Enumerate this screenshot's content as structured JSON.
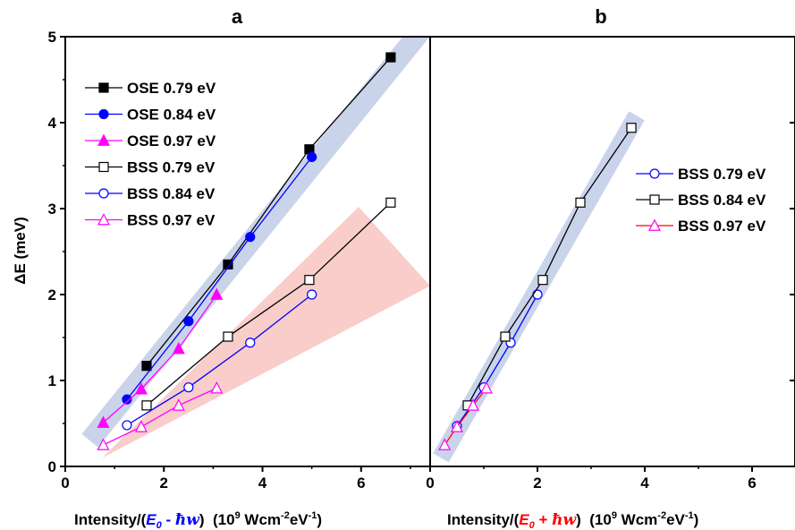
{
  "figure": {
    "ylabel": "ΔE (meV)"
  },
  "chart_data": [
    {
      "panel": "a",
      "type": "line",
      "title": "a",
      "xlabel": {
        "pre": "Intensity/(",
        "e0": "E",
        "e0_sub": "0",
        "op": " - ",
        "hw": "ħw",
        "post": ")  (10",
        "sup1": "9",
        "mid": " Wcm",
        "sup2": "-2",
        "mid2": "eV",
        "sup3": "-1",
        "end": ")"
      },
      "ylabel": "ΔE (meV)",
      "xlim": [
        0,
        7.4
      ],
      "ylim": [
        0,
        5
      ],
      "xticks": [
        0,
        2,
        4,
        6
      ],
      "yticks": [
        0,
        1,
        2,
        3,
        4,
        5
      ],
      "legend_position": "top-left",
      "series": [
        {
          "name": "OSE 0.79 eV",
          "color": "#000000",
          "marker": "square",
          "filled": true,
          "points": [
            [
              1.65,
              1.17
            ],
            [
              3.3,
              2.35
            ],
            [
              4.95,
              3.69
            ],
            [
              6.6,
              4.76
            ]
          ]
        },
        {
          "name": "OSE 0.84 eV",
          "color": "#0000ff",
          "marker": "circle",
          "filled": true,
          "points": [
            [
              1.25,
              0.78
            ],
            [
              2.5,
              1.69
            ],
            [
              3.75,
              2.67
            ],
            [
              5.0,
              3.6
            ]
          ]
        },
        {
          "name": "OSE 0.97 eV",
          "color": "#ff00ff",
          "marker": "triangle",
          "filled": true,
          "points": [
            [
              0.77,
              0.51
            ],
            [
              1.54,
              0.9
            ],
            [
              2.3,
              1.37
            ],
            [
              3.07,
              2.0
            ]
          ]
        },
        {
          "name": "BSS 0.79 eV",
          "color": "#000000",
          "marker": "square",
          "filled": false,
          "points": [
            [
              1.65,
              0.71
            ],
            [
              3.3,
              1.51
            ],
            [
              4.95,
              2.17
            ],
            [
              6.6,
              3.07
            ]
          ]
        },
        {
          "name": "BSS 0.84 eV",
          "color": "#0000ff",
          "marker": "circle",
          "filled": false,
          "points": [
            [
              1.25,
              0.48
            ],
            [
              2.5,
              0.92
            ],
            [
              3.75,
              1.44
            ],
            [
              5.0,
              2.0
            ]
          ]
        },
        {
          "name": "BSS 0.97 eV",
          "color": "#ff00ff",
          "marker": "triangle",
          "filled": false,
          "points": [
            [
              0.77,
              0.25
            ],
            [
              1.54,
              0.46
            ],
            [
              2.3,
              0.71
            ],
            [
              3.07,
              0.91
            ]
          ]
        }
      ],
      "bands": [
        {
          "kind": "line",
          "color": "#c9d3ea",
          "from": [
            0.5,
            0.3
          ],
          "to": [
            7.4,
            5.2
          ],
          "width_meV": 0.35
        },
        {
          "kind": "wedge",
          "color": "#f8cdca",
          "polygon": [
            [
              0.75,
              0.1
            ],
            [
              5.95,
              3.02
            ],
            [
              7.4,
              2.1
            ]
          ]
        }
      ]
    },
    {
      "panel": "b",
      "type": "line",
      "title": "b",
      "xlabel": {
        "pre": "Intensity/(",
        "e0": "E",
        "e0_sub": "0",
        "op": " + ",
        "hw": "ħw",
        "post": ")  (10",
        "sup1": "9",
        "mid": " Wcm",
        "sup2": "-2",
        "mid2": "eV",
        "sup3": "-1",
        "end": ")"
      },
      "xlim": [
        0,
        6.8
      ],
      "ylim": [
        0,
        5
      ],
      "xticks": [
        0,
        2,
        4,
        6
      ],
      "yticks": [
        0,
        1,
        2,
        3,
        4,
        5
      ],
      "legend_position": "right",
      "series": [
        {
          "name": "BSS 0.79 eV",
          "color": "#0000ff",
          "marker": "circle",
          "filled": false,
          "points": [
            [
              0.5,
              0.47
            ],
            [
              1.0,
              0.92
            ],
            [
              1.5,
              1.44
            ],
            [
              2.0,
              2.0
            ]
          ]
        },
        {
          "name": "BSS 0.84 eV",
          "color": "#000000",
          "marker": "square",
          "filled": false,
          "points": [
            [
              0.7,
              0.71
            ],
            [
              1.4,
              1.51
            ],
            [
              2.1,
              2.17
            ],
            [
              2.8,
              3.07
            ],
            [
              3.75,
              3.94
            ]
          ]
        },
        {
          "name": "BSS 0.97 eV",
          "color": "#ff00ff",
          "line_color": "#ff0000",
          "marker": "triangle",
          "filled": false,
          "points": [
            [
              0.27,
              0.25
            ],
            [
              0.5,
              0.46
            ],
            [
              0.8,
              0.71
            ],
            [
              1.05,
              0.91
            ]
          ]
        }
      ],
      "bands": [
        {
          "kind": "line",
          "color": "#c9d3ea",
          "from": [
            0.2,
            0.1
          ],
          "to": [
            3.85,
            4.08
          ],
          "width_meV": 0.3
        }
      ]
    }
  ]
}
